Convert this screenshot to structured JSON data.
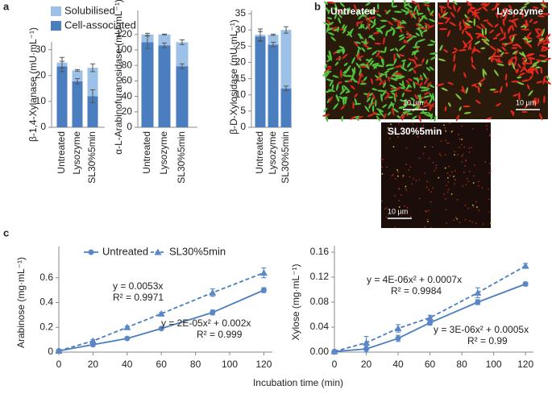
{
  "panel_labels": [
    "a",
    "b",
    "c"
  ],
  "images": [
    {
      "label": "Untreated",
      "scale": "10 µm"
    },
    {
      "label": "Lysozyme",
      "scale": "10 µm"
    },
    {
      "label": "SL30%5min",
      "scale": "10 µm"
    }
  ],
  "shared_xlabel": "Incubation time (min)",
  "chart_data": [
    {
      "type": "bar",
      "stacked": true,
      "legend": true,
      "ylabel": "β-1,4-Xylanase (mU·mL⁻¹)",
      "categories": [
        "Untreated",
        "Lysozyme",
        "SL30%5min"
      ],
      "series": [
        {
          "name": "Cell-associated",
          "color": "#4a7ebf",
          "values": [
            23.5,
            17.8,
            12
          ],
          "errors": [
            2,
            1,
            2.5
          ]
        },
        {
          "name": "Solubilised",
          "color": "#9dc0e6",
          "values": [
            1.5,
            4.2,
            11
          ],
          "errors": [
            2,
            0.3,
            1.5
          ]
        }
      ],
      "ylim": [
        0,
        33
      ],
      "yticks": [
        0,
        10,
        20,
        30
      ]
    },
    {
      "type": "bar",
      "stacked": true,
      "legend": false,
      "ylabel": "α-L-Arabinofuranosidase (mU·mL⁻¹)",
      "categories": [
        "Untreated",
        "Lysozyme",
        "SL30%5min"
      ],
      "series": [
        {
          "name": "Cell-associated",
          "color": "#4a7ebf",
          "values": [
            110,
            106,
            79
          ],
          "errors": [
            8,
            3,
            3
          ]
        },
        {
          "name": "Solubilised",
          "color": "#9dc0e6",
          "values": [
            10,
            14,
            31
          ],
          "errors": [
            1.5,
            0.5,
            3
          ]
        }
      ],
      "ylim": [
        0,
        151
      ],
      "yticks": [
        0,
        20,
        40,
        60,
        80,
        100,
        120
      ]
    },
    {
      "type": "bar",
      "stacked": true,
      "legend": false,
      "ylabel": "β-D-Xylosidase (mU·mL⁻¹)",
      "categories": [
        "Untreated",
        "Lysozyme",
        "SL30%5min"
      ],
      "series": [
        {
          "name": "Cell-associated",
          "color": "#4a7ebf",
          "values": [
            28,
            25.5,
            12
          ],
          "errors": [
            1.5,
            0.7,
            0.7
          ]
        },
        {
          "name": "Solubilised",
          "color": "#9dc0e6",
          "values": [
            0.5,
            3,
            18
          ],
          "errors": [
            1.8,
            0.2,
            1
          ]
        }
      ],
      "ylim": [
        0,
        36
      ],
      "yticks": [
        0,
        5,
        10,
        15,
        20,
        25,
        30,
        35
      ]
    },
    {
      "type": "line",
      "legend": true,
      "ylabel": "Arabinose (mg·mL⁻¹)",
      "x": [
        0,
        20,
        40,
        60,
        90,
        120
      ],
      "series": [
        {
          "name": "Untreated",
          "color": "#4a7ebf",
          "marker": "circle",
          "dashed": false,
          "values": [
            0.01,
            0.06,
            0.11,
            0.19,
            0.32,
            0.5
          ],
          "errors": [
            0.005,
            0.01,
            0.01,
            0.01,
            0.02,
            0.02
          ]
        },
        {
          "name": "SL30%5min",
          "color": "#4a7ebf",
          "marker": "triangle",
          "dashed": true,
          "values": [
            0.01,
            0.09,
            0.2,
            0.31,
            0.48,
            0.64
          ],
          "errors": [
            0.005,
            0.01,
            0.01,
            0.01,
            0.03,
            0.04
          ]
        }
      ],
      "annotations": [
        "y = 0.0053x",
        "R² = 0.9971",
        "y = 2E-05x² + 0.002x",
        "R² = 0.999"
      ],
      "xlim": [
        0,
        125
      ],
      "xticks": [
        0,
        20,
        40,
        60,
        80,
        100,
        120
      ],
      "ylim": [
        0,
        0.8
      ],
      "yticks": [
        0,
        0.2,
        0.4,
        0.6
      ]
    },
    {
      "type": "line",
      "legend": false,
      "ylabel": "Xylose (mg·mL⁻¹)",
      "x": [
        0,
        20,
        40,
        60,
        90,
        120
      ],
      "series": [
        {
          "name": "Untreated",
          "color": "#4a7ebf",
          "marker": "circle",
          "dashed": false,
          "values": [
            0.001,
            0.005,
            0.022,
            0.047,
            0.08,
            0.109
          ],
          "errors": [
            0.001,
            0.005,
            0.005,
            0.004,
            0.004,
            0.003
          ]
        },
        {
          "name": "SL30%5min",
          "color": "#4a7ebf",
          "marker": "triangle",
          "dashed": true,
          "values": [
            0.001,
            0.015,
            0.038,
            0.055,
            0.095,
            0.138
          ],
          "errors": [
            0.001,
            0.01,
            0.006,
            0.004,
            0.008,
            0.004
          ]
        }
      ],
      "annotations": [
        "y = 4E-06x² + 0.0007x",
        "R² = 0.9984",
        "y = 3E-06x² + 0.0005x",
        "R² = 0.99"
      ],
      "xlim": [
        0,
        125
      ],
      "xticks": [
        0,
        20,
        40,
        60,
        80,
        100,
        120
      ],
      "ylim": [
        0,
        0.16
      ],
      "yticks": [
        {
          "value": 0,
          "label": "0.00"
        },
        0.04,
        0.08,
        0.12,
        0.16
      ]
    }
  ]
}
